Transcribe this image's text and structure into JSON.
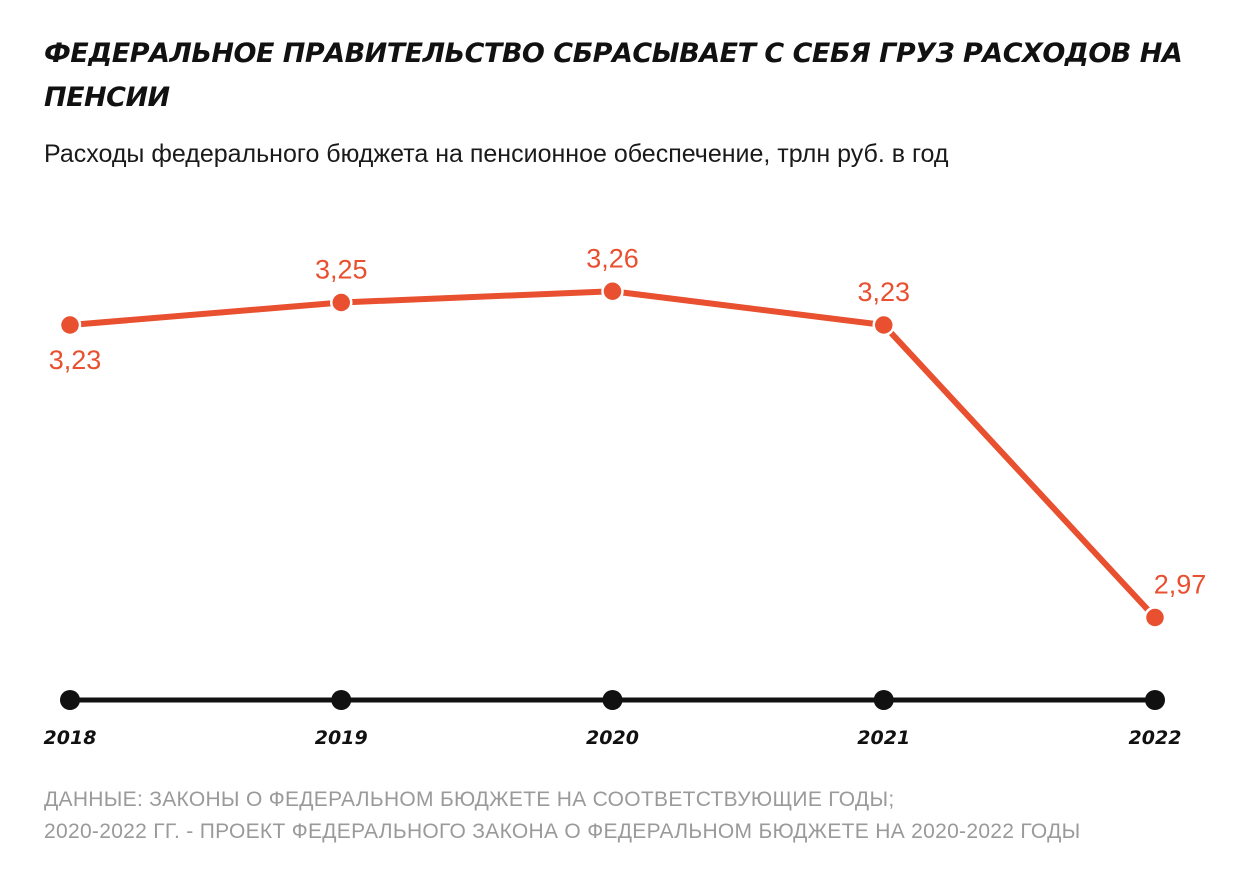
{
  "chart_data": {
    "type": "line",
    "title": "ФЕДЕРАЛЬНОЕ ПРАВИТЕЛЬСТВО СБРАСЫВАЕТ С СЕБЯ ГРУЗ РАСХОДОВ НА ПЕНСИИ",
    "subtitle": "Расходы федерального бюджета на пенсионное обеспечение, трлн руб. в год",
    "categories": [
      "2018",
      "2019",
      "2020",
      "2021",
      "2022"
    ],
    "values": [
      3.23,
      3.25,
      3.26,
      3.23,
      2.97
    ],
    "value_labels": [
      "3,23",
      "3,25",
      "3,26",
      "3,23",
      "2,97"
    ],
    "ylim": [
      2.95,
      3.27
    ],
    "grid": false,
    "colors": {
      "line": "#e8502f",
      "axis": "#111111"
    }
  },
  "source": {
    "line1": "ДАННЫЕ: ЗАКОНЫ О ФЕДЕРАЛЬНОМ БЮДЖЕТЕ НА СООТВЕТСТВУЮЩИЕ ГОДЫ;",
    "line2": "2020-2022 ГГ. - ПРОЕКТ ФЕДЕРАЛЬНОГО ЗАКОНА О ФЕДЕРАЛЬНОМ БЮДЖЕТЕ НА 2020-2022 ГОДЫ"
  }
}
